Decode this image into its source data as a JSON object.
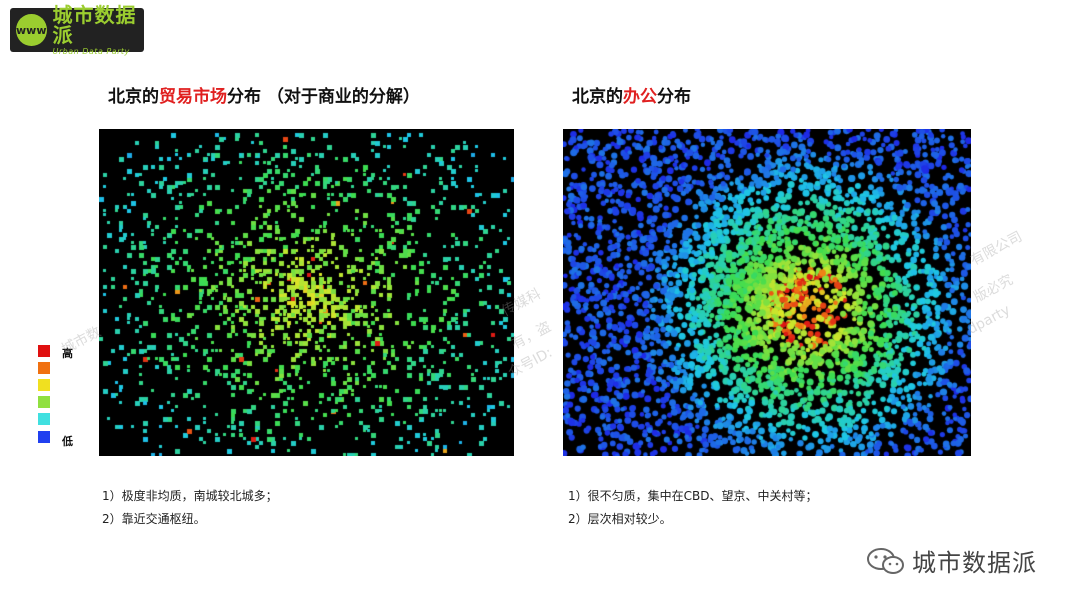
{
  "logo": {
    "name_cn": "城市数据派",
    "name_en": "Urban Data Party",
    "mark": "www"
  },
  "left_panel": {
    "title_prefix": "北京的",
    "title_highlight": "贸易市场",
    "title_suffix": "分布 （对于商业的分解）",
    "notes": [
      "1）极度非均质，南城较北城多；",
      "2）靠近交通枢纽。"
    ]
  },
  "right_panel": {
    "title_prefix": "北京的",
    "title_highlight": "办公",
    "title_suffix": "分布",
    "notes": [
      "1）很不匀质，集中在CBD、望京、中关村等；",
      "2）层次相对较少。"
    ]
  },
  "legend": {
    "high_label": "高",
    "low_label": "低",
    "colors": [
      "#e01010",
      "#f07010",
      "#f0e020",
      "#90e040",
      "#40e0e0",
      "#2040f0"
    ]
  },
  "watermarks": [
    "传媒科",
    "有，盗",
    "众号ID:",
    "有限公司",
    "版必究",
    "dparty",
    "城市数"
  ],
  "footer": {
    "brand": "城市数据派",
    "icon": "wechat-icon"
  },
  "colors": {
    "accent": "#e02020",
    "brand_green": "#9bcd2f"
  }
}
